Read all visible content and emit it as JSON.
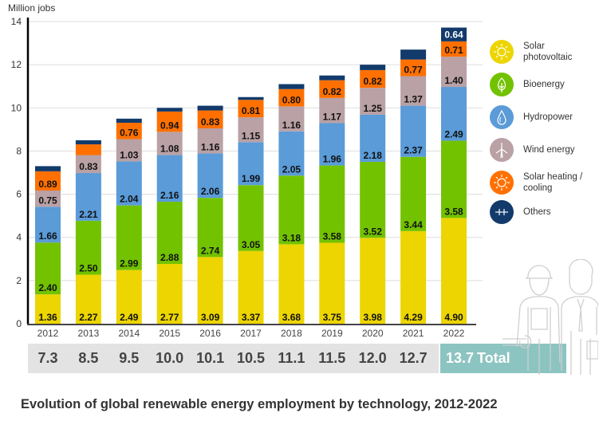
{
  "chart_data": {
    "type": "bar",
    "stacked": true,
    "title": "Evolution of global renewable energy employment by technology, 2012-2022",
    "ylabel": "Million jobs",
    "xlabel": "",
    "ylim": [
      0,
      14
    ],
    "yticks": [
      0,
      2,
      4,
      6,
      8,
      10,
      12,
      14
    ],
    "grid": true,
    "legend_position": "right",
    "categories": [
      "2012",
      "2013",
      "2014",
      "2015",
      "2016",
      "2017",
      "2018",
      "2019",
      "2020",
      "2021",
      "2022"
    ],
    "series": [
      {
        "name": "Solar photovoltaic",
        "color": "#ecd500",
        "values": [
          1.36,
          2.27,
          2.49,
          2.77,
          3.09,
          3.37,
          3.68,
          3.75,
          3.98,
          4.29,
          4.9
        ],
        "labels": [
          "1.36",
          "2.27",
          "2.49",
          "2.77",
          "3.09",
          "3.37",
          "3.68",
          "3.75",
          "3.98",
          "4.29",
          "4.90"
        ]
      },
      {
        "name": "Bioenergy",
        "color": "#72c200",
        "values": [
          2.4,
          2.5,
          2.99,
          2.88,
          2.74,
          3.05,
          3.18,
          3.58,
          3.52,
          3.44,
          3.58
        ],
        "labels": [
          "2.40",
          "2.50",
          "2.99",
          "2.88",
          "2.74",
          "3.05",
          "3.18",
          "3.58",
          "3.52",
          "3.44",
          "3.58"
        ]
      },
      {
        "name": "Hydropower",
        "color": "#5a9bd8",
        "values": [
          1.66,
          2.21,
          2.04,
          2.16,
          2.06,
          1.99,
          2.05,
          1.96,
          2.18,
          2.37,
          2.49
        ],
        "labels": [
          "1.66",
          "2.21",
          "2.04",
          "2.16",
          "2.06",
          "1.99",
          "2.05",
          "1.96",
          "2.18",
          "2.37",
          "2.49"
        ]
      },
      {
        "name": "Wind energy",
        "color": "#b9a1a6",
        "values": [
          0.75,
          0.83,
          1.03,
          1.08,
          1.16,
          1.15,
          1.16,
          1.17,
          1.25,
          1.37,
          1.4
        ],
        "labels": [
          "0.75",
          "0.83",
          "1.03",
          "1.08",
          "1.16",
          "1.15",
          "1.16",
          "1.17",
          "1.25",
          "1.37",
          "1.40"
        ]
      },
      {
        "name": "Solar heating / cooling",
        "color": "#ff7000",
        "values": [
          0.89,
          0.5,
          0.76,
          0.94,
          0.83,
          0.81,
          0.8,
          0.82,
          0.82,
          0.77,
          0.71
        ],
        "labels": [
          "0.89",
          "",
          "0.76",
          "0.94",
          "0.83",
          "0.81",
          "0.80",
          "0.82",
          "0.82",
          "0.77",
          "0.71"
        ]
      },
      {
        "name": "Others",
        "color": "#123a6b",
        "values": [
          0.24,
          0.19,
          0.19,
          0.17,
          0.22,
          0.13,
          0.23,
          0.22,
          0.25,
          0.46,
          0.64
        ],
        "labels": [
          "",
          "",
          "",
          "",
          "",
          "",
          "",
          "",
          "",
          "",
          "0.64"
        ]
      }
    ],
    "totals": [
      "7.3",
      "8.5",
      "9.5",
      "10.0",
      "10.1",
      "10.5",
      "11.1",
      "11.5",
      "12.0",
      "12.7",
      "13.7"
    ],
    "totals_label": "Total"
  },
  "legend": [
    {
      "label": "Solar photovoltaic",
      "icon": "sun-icon",
      "color": "#ecd500"
    },
    {
      "label": "Bioenergy",
      "icon": "leaf-icon",
      "color": "#72c200"
    },
    {
      "label": "Hydropower",
      "icon": "water-drop-icon",
      "color": "#5a9bd8"
    },
    {
      "label": "Wind energy",
      "icon": "wind-turbine-icon",
      "color": "#b9a1a6"
    },
    {
      "label": "Solar heating / cooling",
      "icon": "sun-icon",
      "color": "#ff7000"
    },
    {
      "label": "Others",
      "icon": "plus-plus-icon",
      "color": "#123a6b"
    }
  ],
  "caption": "Evolution of global renewable energy employment by technology, 2012-2022",
  "colors": {
    "highlight_total": "#8cc4c1",
    "total_band": "#e3e3e3",
    "grid": "#dddddd"
  }
}
